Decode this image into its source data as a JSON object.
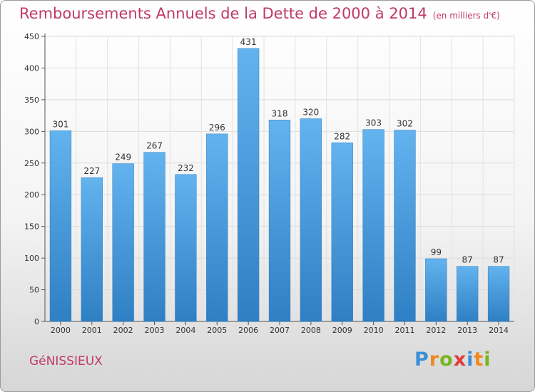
{
  "title": "Remboursements Annuels de la Dette de 2000 à 2014",
  "unit": "(en milliers d'€)",
  "commune": "GéNISSIEUX",
  "logo": {
    "letters": [
      "P",
      "r",
      "o",
      "x",
      "i",
      "t",
      "i"
    ],
    "colors": [
      "#3a8fd6",
      "#f08a1c",
      "#7ab51d",
      "#e23b3b",
      "#3a8fd6",
      "#f08a1c",
      "#7ab51d"
    ]
  },
  "chart_data": {
    "type": "bar",
    "title": "Remboursements Annuels de la Dette de 2000 à 2014",
    "categories": [
      "2000",
      "2001",
      "2002",
      "2003",
      "2004",
      "2005",
      "2006",
      "2007",
      "2008",
      "2009",
      "2010",
      "2011",
      "2012",
      "2013",
      "2014"
    ],
    "values": [
      301,
      227,
      249,
      267,
      232,
      296,
      431,
      318,
      320,
      282,
      303,
      302,
      99,
      87,
      87
    ],
    "ylim": [
      0,
      450
    ],
    "yticks": [
      0,
      50,
      100,
      150,
      200,
      250,
      300,
      350,
      400,
      450
    ],
    "grid": true,
    "bar_color": "#4ea3e3"
  }
}
